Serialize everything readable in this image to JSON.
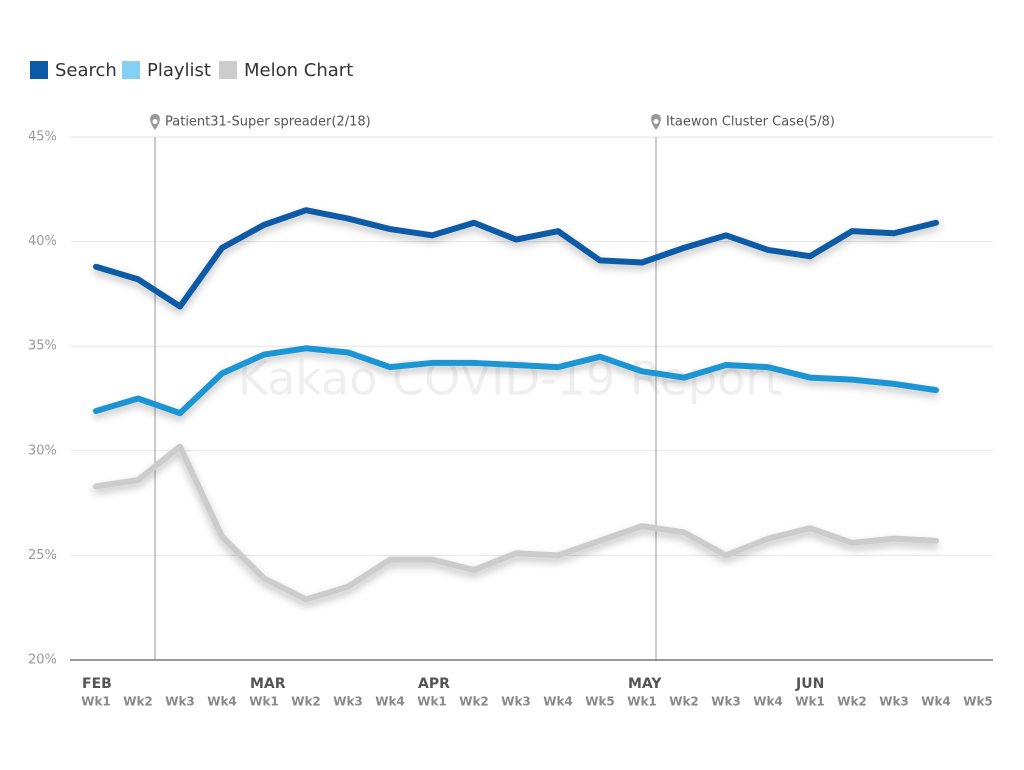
{
  "chart_data": {
    "type": "line",
    "watermark": "Kakao COVID-19 Report",
    "categories": [
      "Wk1",
      "Wk2",
      "Wk3",
      "Wk4",
      "Wk1",
      "Wk2",
      "Wk3",
      "Wk4",
      "Wk1",
      "Wk2",
      "Wk3",
      "Wk4",
      "Wk5",
      "Wk1",
      "Wk2",
      "Wk3",
      "Wk4",
      "Wk1",
      "Wk2",
      "Wk3",
      "Wk4",
      "Wk5"
    ],
    "x_groups": [
      {
        "label": "FEB",
        "start": 0
      },
      {
        "label": "MAR",
        "start": 4
      },
      {
        "label": "APR",
        "start": 8
      },
      {
        "label": "MAY",
        "start": 13
      },
      {
        "label": "JUN",
        "start": 17
      }
    ],
    "series": [
      {
        "name": "Search",
        "color": "#0b5aa6",
        "values": [
          38.8,
          38.2,
          36.9,
          39.7,
          40.8,
          41.5,
          41.1,
          40.6,
          40.3,
          40.9,
          40.1,
          40.5,
          39.1,
          39.0,
          39.7,
          40.3,
          39.6,
          39.3,
          40.5,
          40.4,
          40.9,
          null
        ]
      },
      {
        "name": "Playlist",
        "color": "#1f95d4",
        "values": [
          31.9,
          32.5,
          31.8,
          33.7,
          34.6,
          34.9,
          34.7,
          34.0,
          34.2,
          34.2,
          34.1,
          34.0,
          34.5,
          33.8,
          33.5,
          34.1,
          34.0,
          33.5,
          33.4,
          33.2,
          32.9,
          null
        ]
      },
      {
        "name": "Melon Chart",
        "color": "#cccccc",
        "values": [
          28.3,
          28.6,
          30.2,
          25.9,
          23.9,
          22.9,
          23.5,
          24.8,
          24.8,
          24.3,
          25.1,
          25.0,
          25.7,
          26.4,
          26.1,
          25.0,
          25.8,
          26.3,
          25.6,
          25.8,
          25.7,
          null
        ]
      }
    ],
    "annotations": [
      {
        "text": "Patient31-Super spreader(2/18)"
      },
      {
        "text": "Itaewon Cluster Case(5/8)"
      }
    ],
    "ylim": [
      20,
      45
    ],
    "yticks": [
      {
        "value": 20,
        "label": "20%"
      },
      {
        "value": 25,
        "label": "25%"
      },
      {
        "value": 30,
        "label": "30%"
      },
      {
        "value": 35,
        "label": "35%"
      },
      {
        "value": 40,
        "label": "40%"
      },
      {
        "value": 45,
        "label": "45%"
      }
    ],
    "grid": true,
    "legend": "top-left"
  }
}
